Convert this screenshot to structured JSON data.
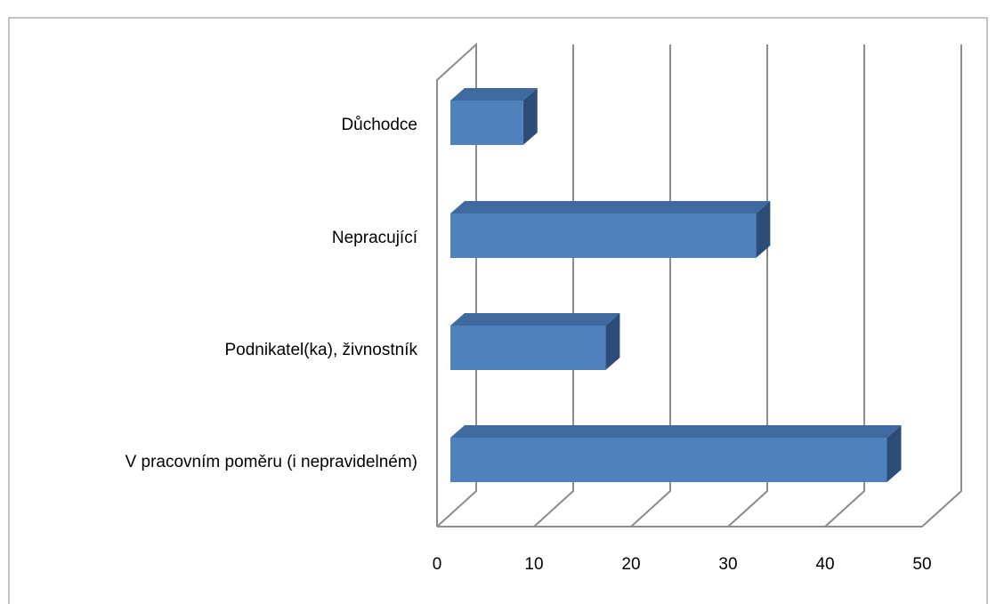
{
  "chart_data": {
    "type": "bar",
    "orientation": "horizontal",
    "categories": [
      "Důchodce",
      "Nepracující",
      "Podnikatel(ka), živnostník",
      "V pracovním poměru (i nepravidelném)"
    ],
    "values": [
      7.5,
      31.5,
      16,
      45
    ],
    "color": "#4f81bd",
    "xlim": [
      0,
      50
    ],
    "xticks": [
      0,
      10,
      20,
      30,
      40,
      50
    ],
    "grid": true
  }
}
